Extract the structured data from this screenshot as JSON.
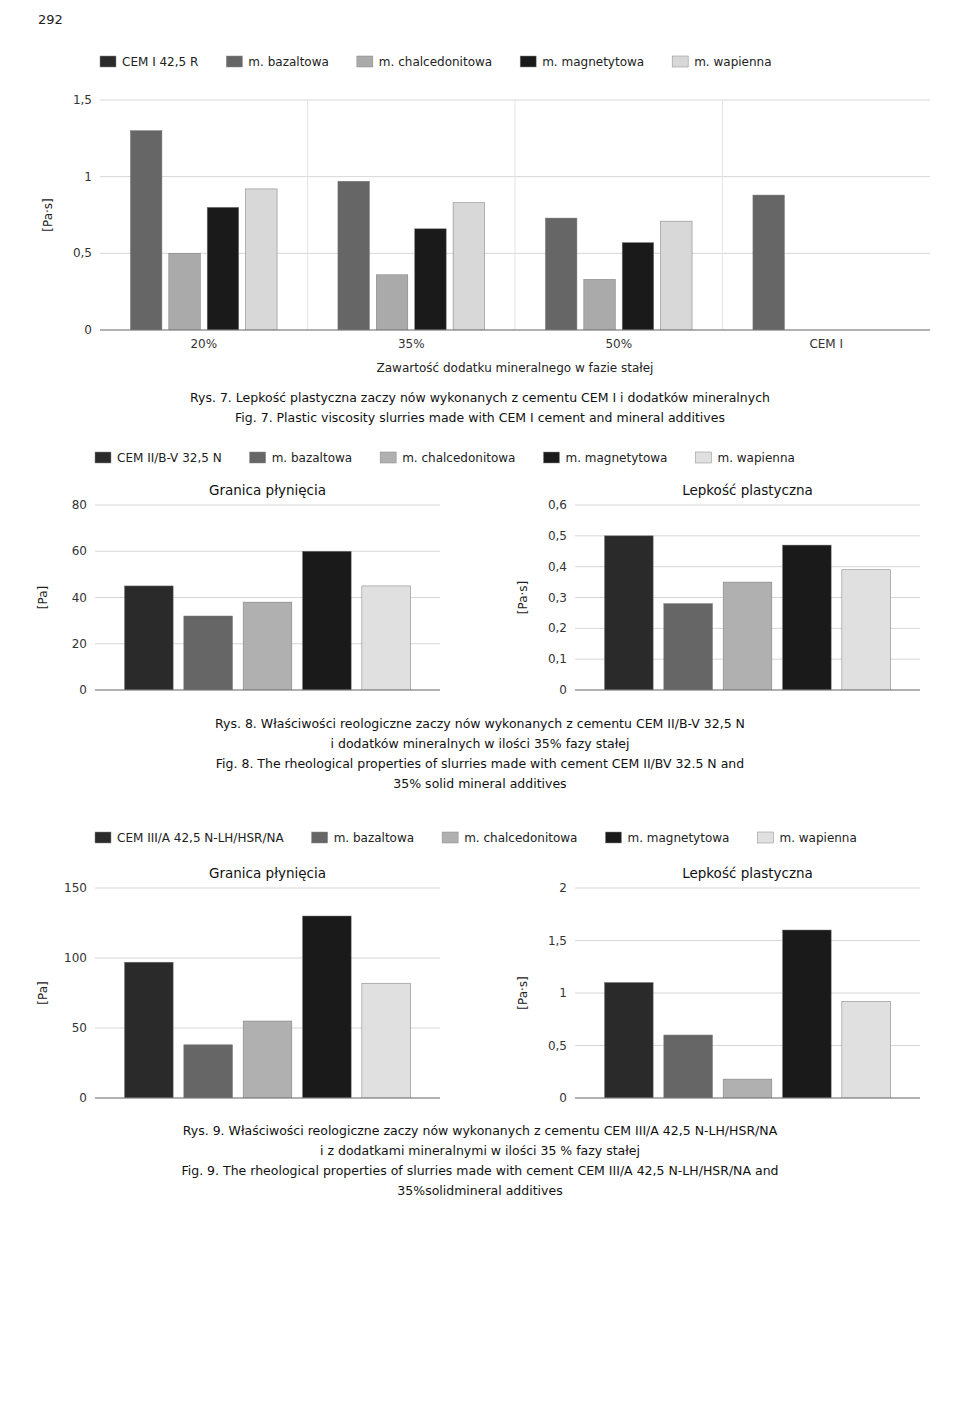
{
  "page_number": "292",
  "chart_data": [
    {
      "type": "bar",
      "categories": [
        "20%",
        "35%",
        "50%",
        "CEM I"
      ],
      "series": [
        {
          "name": "CEM I 42,5 R",
          "color": "#2a2a2a",
          "values": [
            null,
            null,
            null,
            null
          ]
        },
        {
          "name": "m. bazaltowa",
          "color": "#666666",
          "values": [
            1.3,
            0.97,
            0.73,
            0.88
          ]
        },
        {
          "name": "m. chalcedonitowa",
          "color": "#aaaaaa",
          "values": [
            0.5,
            0.36,
            0.33,
            null
          ]
        },
        {
          "name": "m. magnetytowa",
          "color": "#1a1a1a",
          "values": [
            0.8,
            0.66,
            0.57,
            null
          ]
        },
        {
          "name": "m. wapienna",
          "color": "#d8d8d8",
          "values": [
            0.92,
            0.83,
            0.71,
            null
          ]
        }
      ],
      "ylabel": "[Pa·s]",
      "xlabel": "Zawartość dodatku mineralnego w fazie stałej",
      "ylim": [
        0,
        1.5
      ],
      "yticks": [
        0,
        {
          "value": 0.5,
          "label": "0,5"
        },
        1,
        {
          "value": 1.5,
          "label": "1,5"
        }
      ],
      "grid": true,
      "legend": "top",
      "caption": [
        "Rys. 7. Lepkość plastyczna zaczy nów wykonanych z cementu CEM I i dodatków mineralnych",
        "Fig. 7. Plastic viscosity slurries made with CEM I cement and mineral additives"
      ]
    },
    {
      "type": "bar",
      "title": "Granica płynięcia",
      "categories": [
        null
      ],
      "series": [
        {
          "name": "CEM II/B-V 32,5 N",
          "color": "#2a2a2a",
          "values": [
            45
          ]
        },
        {
          "name": "m. bazaltowa",
          "color": "#666666",
          "values": [
            32
          ]
        },
        {
          "name": "m. chalcedonitowa",
          "color": "#b0b0b0",
          "values": [
            38
          ]
        },
        {
          "name": "m. magnetytowa",
          "color": "#1a1a1a",
          "values": [
            60
          ]
        },
        {
          "name": "m. wapienna",
          "color": "#e0e0e0",
          "values": [
            45
          ]
        }
      ],
      "ylabel": "[Pa]",
      "ylim": [
        0,
        80
      ],
      "yticks": [
        0,
        20,
        40,
        60,
        80
      ],
      "grid": true,
      "legend": "top",
      "tick_labels": "y",
      "caption": [
        "Rys. 8. Właściwości reologiczne zaczy nów wykonanych z cementu CEM II/B-V 32,5 N",
        "i dodatków mineralnych w ilości 35% fazy stałej",
        "Fig. 8. The rheological properties of slurries made with cement CEM II/BV 32.5 N and",
        "35% solid mineral additives"
      ]
    },
    {
      "type": "bar",
      "title": "Lepkość plastyczna",
      "categories": [
        null
      ],
      "series": [
        {
          "color": "#2a2a2a",
          "values": [
            0.5
          ]
        },
        {
          "color": "#666666",
          "values": [
            0.28
          ]
        },
        {
          "color": "#b0b0b0",
          "values": [
            0.35
          ]
        },
        {
          "color": "#1a1a1a",
          "values": [
            0.47
          ]
        },
        {
          "color": "#e0e0e0",
          "values": [
            0.39
          ]
        }
      ],
      "ylabel": "[Pa·s]",
      "ylim": [
        0,
        0.6
      ],
      "yticks": [
        0,
        {
          "value": 0.1,
          "label": "0,1"
        },
        {
          "value": 0.2,
          "label": "0,2"
        },
        {
          "value": 0.3,
          "label": "0,3"
        },
        {
          "value": 0.4,
          "label": "0,4"
        },
        {
          "value": 0.5,
          "label": "0,5"
        },
        {
          "value": 0.6,
          "label": "0,6"
        }
      ],
      "grid": true,
      "tick_labels": "y"
    },
    {
      "type": "bar",
      "title": "Granica płynięcia",
      "categories": [
        null
      ],
      "series": [
        {
          "name": "CEM III/A 42,5 N-LH/HSR/NA",
          "color": "#2a2a2a",
          "values": [
            97
          ]
        },
        {
          "name": "m. bazaltowa",
          "color": "#666666",
          "values": [
            38
          ]
        },
        {
          "name": "m. chalcedonitowa",
          "color": "#b0b0b0",
          "values": [
            55
          ]
        },
        {
          "name": "m. magnetytowa",
          "color": "#1a1a1a",
          "values": [
            130
          ]
        },
        {
          "name": "m. wapienna",
          "color": "#e0e0e0",
          "values": [
            82
          ]
        }
      ],
      "ylabel": "[Pa]",
      "ylim": [
        0,
        150
      ],
      "yticks": [
        0,
        50,
        100,
        150
      ],
      "grid": true,
      "legend": "top",
      "tick_labels": "y",
      "caption": [
        "Rys. 9. Właściwości reologiczne zaczy nów wykonanych z cementu CEM III/A 42,5 N-LH/HSR/NA",
        "i z dodatkami mineralnymi w ilości 35 % fazy stałej",
        "Fig. 9. The rheological properties of slurries made with cement CEM III/A 42,5 N-LH/HSR/NA and",
        "35%solidmineral additives"
      ]
    },
    {
      "type": "bar",
      "title": "Lepkość plastyczna",
      "categories": [
        null
      ],
      "series": [
        {
          "color": "#2a2a2a",
          "values": [
            1.1
          ]
        },
        {
          "color": "#666666",
          "values": [
            0.6
          ]
        },
        {
          "color": "#b0b0b0",
          "values": [
            0.18
          ]
        },
        {
          "color": "#1a1a1a",
          "values": [
            1.6
          ]
        },
        {
          "color": "#e0e0e0",
          "values": [
            0.92
          ]
        }
      ],
      "ylabel": "[Pa·s]",
      "ylim": [
        0,
        2
      ],
      "yticks": [
        0,
        {
          "value": 0.5,
          "label": "0,5"
        },
        1,
        {
          "value": 1.5,
          "label": "1,5"
        },
        2
      ],
      "grid": true,
      "tick_labels": "y"
    }
  ]
}
